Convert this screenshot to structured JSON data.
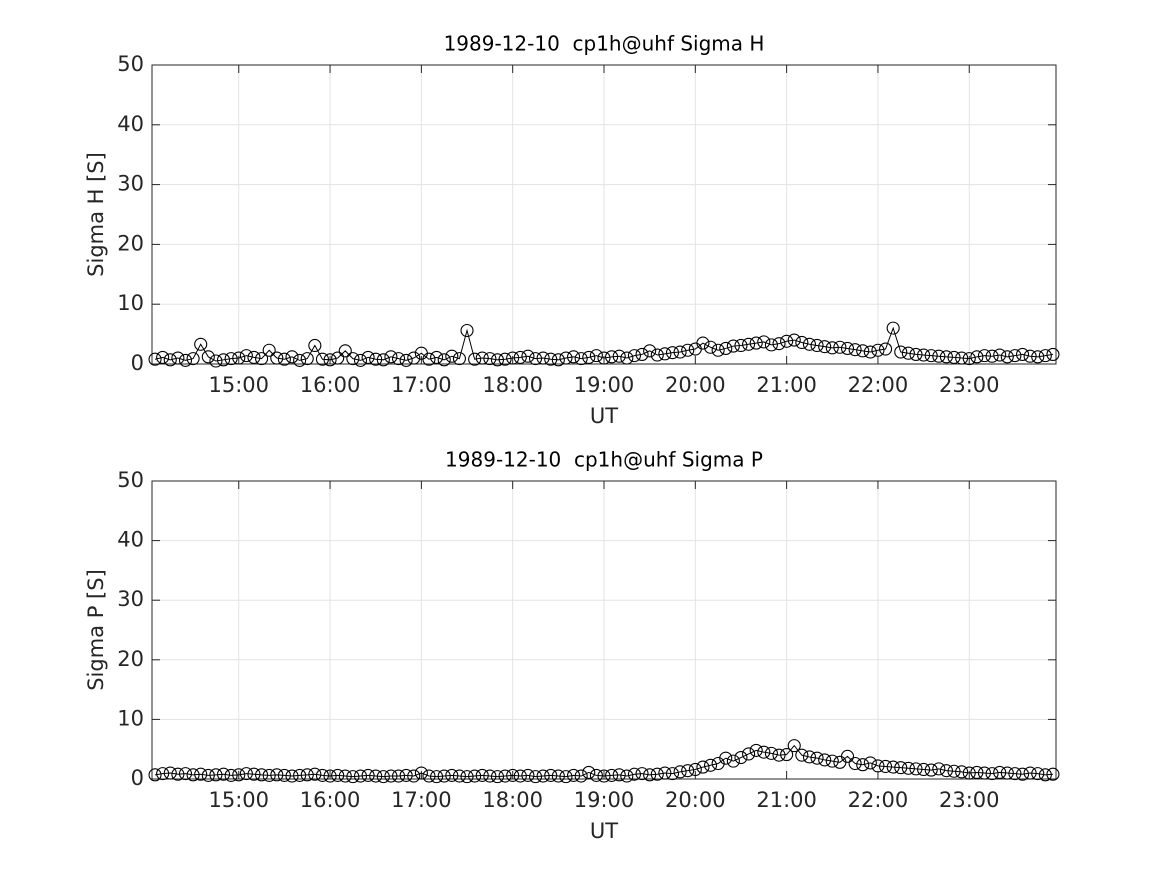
{
  "chart_data": [
    {
      "type": "line",
      "title": "1989-12-10  cp1h@uhf Sigma H",
      "xlabel": "UT",
      "ylabel": "Sigma H [S]",
      "x": [
        845,
        850,
        855,
        860,
        865,
        870,
        875,
        880,
        885,
        890,
        895,
        900,
        905,
        910,
        915,
        920,
        925,
        930,
        935,
        940,
        945,
        950,
        955,
        960,
        965,
        970,
        975,
        980,
        985,
        990,
        995,
        1000,
        1005,
        1010,
        1015,
        1020,
        1025,
        1030,
        1035,
        1040,
        1045,
        1050,
        1055,
        1060,
        1065,
        1070,
        1075,
        1080,
        1085,
        1090,
        1095,
        1100,
        1105,
        1110,
        1115,
        1120,
        1125,
        1130,
        1135,
        1140,
        1145,
        1150,
        1155,
        1160,
        1165,
        1170,
        1175,
        1180,
        1185,
        1190,
        1195,
        1200,
        1205,
        1210,
        1215,
        1220,
        1225,
        1230,
        1235,
        1240,
        1245,
        1250,
        1255,
        1260,
        1265,
        1270,
        1275,
        1280,
        1285,
        1290,
        1295,
        1300,
        1305,
        1310,
        1315,
        1320,
        1325,
        1330,
        1335,
        1340,
        1345,
        1350,
        1355,
        1360,
        1365,
        1370,
        1375,
        1380,
        1385,
        1390,
        1395,
        1400,
        1405,
        1410,
        1415,
        1420,
        1425,
        1430,
        1435
      ],
      "values": [
        0.8,
        1.1,
        0.7,
        1.0,
        0.6,
        0.9,
        3.3,
        1.2,
        0.5,
        0.7,
        0.9,
        1.0,
        1.4,
        1.1,
        0.9,
        2.3,
        1.0,
        0.8,
        1.2,
        0.6,
        0.9,
        3.1,
        0.8,
        0.7,
        1.0,
        2.2,
        0.9,
        0.6,
        1.1,
        0.8,
        0.7,
        1.2,
        0.9,
        0.6,
        1.0,
        1.8,
        0.8,
        1.1,
        0.7,
        1.3,
        0.9,
        5.6,
        0.8,
        1.0,
        0.9,
        0.7,
        0.8,
        1.0,
        1.1,
        1.3,
        0.9,
        1.0,
        0.8,
        0.7,
        1.0,
        1.2,
        0.9,
        1.1,
        1.4,
        1.0,
        1.2,
        1.3,
        1.0,
        1.4,
        1.6,
        2.2,
        1.5,
        1.7,
        1.9,
        2.0,
        2.3,
        2.5,
        3.5,
        2.8,
        2.3,
        2.6,
        3.0,
        3.1,
        3.3,
        3.5,
        3.7,
        3.2,
        3.4,
        3.8,
        4.0,
        3.6,
        3.3,
        3.1,
        2.9,
        2.7,
        2.8,
        2.6,
        2.4,
        2.2,
        2.0,
        2.3,
        2.5,
        6.0,
        2.0,
        1.8,
        1.6,
        1.5,
        1.4,
        1.3,
        1.2,
        1.1,
        1.0,
        0.9,
        1.2,
        1.4,
        1.3,
        1.5,
        1.2,
        1.4,
        1.6,
        1.3,
        1.2,
        1.4,
        1.6
      ],
      "color": "#000000",
      "marker": "circle",
      "xlim": [
        843,
        1437
      ],
      "xticks": [
        {
          "value": 900,
          "label": "15:00"
        },
        {
          "value": 960,
          "label": "16:00"
        },
        {
          "value": 1020,
          "label": "17:00"
        },
        {
          "value": 1080,
          "label": "18:00"
        },
        {
          "value": 1140,
          "label": "19:00"
        },
        {
          "value": 1200,
          "label": "20:00"
        },
        {
          "value": 1260,
          "label": "21:00"
        },
        {
          "value": 1320,
          "label": "22:00"
        },
        {
          "value": 1380,
          "label": "23:00"
        }
      ],
      "ylim": [
        0,
        50
      ],
      "yticks": [
        0,
        10,
        20,
        30,
        40,
        50
      ],
      "grid": true
    },
    {
      "type": "line",
      "title": "1989-12-10  cp1h@uhf Sigma P",
      "xlabel": "UT",
      "ylabel": "Sigma P [S]",
      "x": [
        845,
        850,
        855,
        860,
        865,
        870,
        875,
        880,
        885,
        890,
        895,
        900,
        905,
        910,
        915,
        920,
        925,
        930,
        935,
        940,
        945,
        950,
        955,
        960,
        965,
        970,
        975,
        980,
        985,
        990,
        995,
        1000,
        1005,
        1010,
        1015,
        1020,
        1025,
        1030,
        1035,
        1040,
        1045,
        1050,
        1055,
        1060,
        1065,
        1070,
        1075,
        1080,
        1085,
        1090,
        1095,
        1100,
        1105,
        1110,
        1115,
        1120,
        1125,
        1130,
        1135,
        1140,
        1145,
        1150,
        1155,
        1160,
        1165,
        1170,
        1175,
        1180,
        1185,
        1190,
        1195,
        1200,
        1205,
        1210,
        1215,
        1220,
        1225,
        1230,
        1235,
        1240,
        1245,
        1250,
        1255,
        1260,
        1265,
        1270,
        1275,
        1280,
        1285,
        1290,
        1295,
        1300,
        1305,
        1310,
        1315,
        1320,
        1325,
        1330,
        1335,
        1340,
        1345,
        1350,
        1355,
        1360,
        1365,
        1370,
        1375,
        1380,
        1385,
        1390,
        1395,
        1400,
        1405,
        1410,
        1415,
        1420,
        1425,
        1430,
        1435
      ],
      "values": [
        0.7,
        0.9,
        1.0,
        0.8,
        0.9,
        0.7,
        0.8,
        0.6,
        0.7,
        0.8,
        0.6,
        0.7,
        0.9,
        0.8,
        0.7,
        0.6,
        0.7,
        0.6,
        0.5,
        0.6,
        0.7,
        0.8,
        0.6,
        0.5,
        0.6,
        0.5,
        0.4,
        0.5,
        0.6,
        0.5,
        0.4,
        0.5,
        0.5,
        0.6,
        0.5,
        1.0,
        0.5,
        0.4,
        0.5,
        0.6,
        0.5,
        0.4,
        0.5,
        0.6,
        0.5,
        0.4,
        0.5,
        0.6,
        0.5,
        0.6,
        0.4,
        0.5,
        0.6,
        0.5,
        0.4,
        0.6,
        0.5,
        1.1,
        0.6,
        0.5,
        0.6,
        0.7,
        0.5,
        0.8,
        0.9,
        0.7,
        0.8,
        1.0,
        0.9,
        1.2,
        1.4,
        1.6,
        2.0,
        2.3,
        2.6,
        3.5,
        3.0,
        3.6,
        4.2,
        4.8,
        4.5,
        4.3,
        4.0,
        4.1,
        5.6,
        4.0,
        3.7,
        3.5,
        3.2,
        3.0,
        2.8,
        3.8,
        2.6,
        2.4,
        2.7,
        2.2,
        2.1,
        2.0,
        1.9,
        1.8,
        1.7,
        1.6,
        1.5,
        1.7,
        1.4,
        1.3,
        1.2,
        1.0,
        1.1,
        1.0,
        0.9,
        1.1,
        1.0,
        0.9,
        0.8,
        1.0,
        0.9,
        0.7,
        0.8
      ],
      "color": "#000000",
      "marker": "circle",
      "xlim": [
        843,
        1437
      ],
      "xticks": [
        {
          "value": 900,
          "label": "15:00"
        },
        {
          "value": 960,
          "label": "16:00"
        },
        {
          "value": 1020,
          "label": "17:00"
        },
        {
          "value": 1080,
          "label": "18:00"
        },
        {
          "value": 1140,
          "label": "19:00"
        },
        {
          "value": 1200,
          "label": "20:00"
        },
        {
          "value": 1260,
          "label": "21:00"
        },
        {
          "value": 1320,
          "label": "22:00"
        },
        {
          "value": 1380,
          "label": "23:00"
        }
      ],
      "ylim": [
        0,
        50
      ],
      "yticks": [
        0,
        10,
        20,
        30,
        40,
        50
      ],
      "grid": true
    }
  ]
}
